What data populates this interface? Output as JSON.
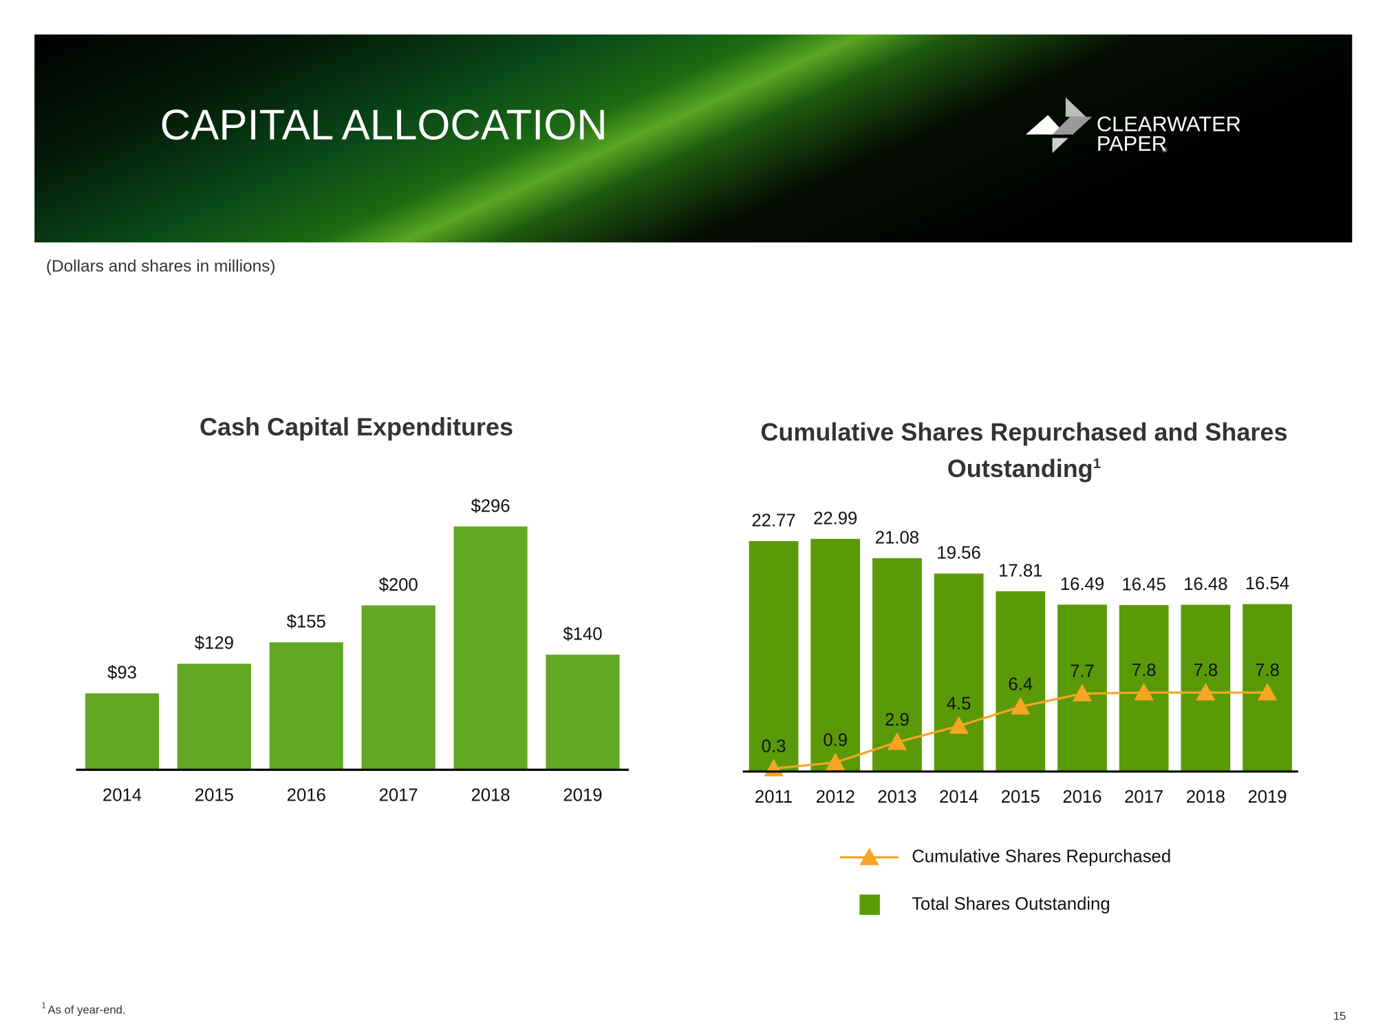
{
  "header": {
    "title": "CAPITAL ALLOCATION",
    "logo_name": "CLEARWATER",
    "logo_sub": "PAPER",
    "logo_mark": "®"
  },
  "note": "(Dollars and shares in millions)",
  "chart_data": [
    {
      "type": "bar",
      "title": "Cash Capital Expenditures",
      "categories": [
        "2014",
        "2015",
        "2016",
        "2017",
        "2018",
        "2019"
      ],
      "values": [
        93,
        129,
        155,
        200,
        296,
        140
      ],
      "value_labels": [
        "$93",
        "$129",
        "$155",
        "$200",
        "$296",
        "$140"
      ],
      "color": "#62a823"
    },
    {
      "type": "combo",
      "title": "Cumulative Shares Repurchased and Shares Outstanding",
      "title_note": "1",
      "categories": [
        "2011",
        "2012",
        "2013",
        "2014",
        "2015",
        "2016",
        "2017",
        "2018",
        "2019"
      ],
      "series": [
        {
          "name": "Cumulative Shares Repurchased",
          "type": "line",
          "color": "#f5a623",
          "values": [
            0.3,
            0.9,
            2.9,
            4.5,
            6.4,
            7.7,
            7.8,
            7.8,
            7.8
          ]
        },
        {
          "name": "Total Shares Outstanding",
          "type": "bar",
          "color": "#5a9a08",
          "values": [
            22.77,
            22.99,
            21.08,
            19.56,
            17.81,
            16.49,
            16.45,
            16.48,
            16.54
          ]
        }
      ],
      "legend": "bottom"
    }
  ],
  "footnote": {
    "mark": "1",
    "text": "As of year-end."
  },
  "page": "15"
}
